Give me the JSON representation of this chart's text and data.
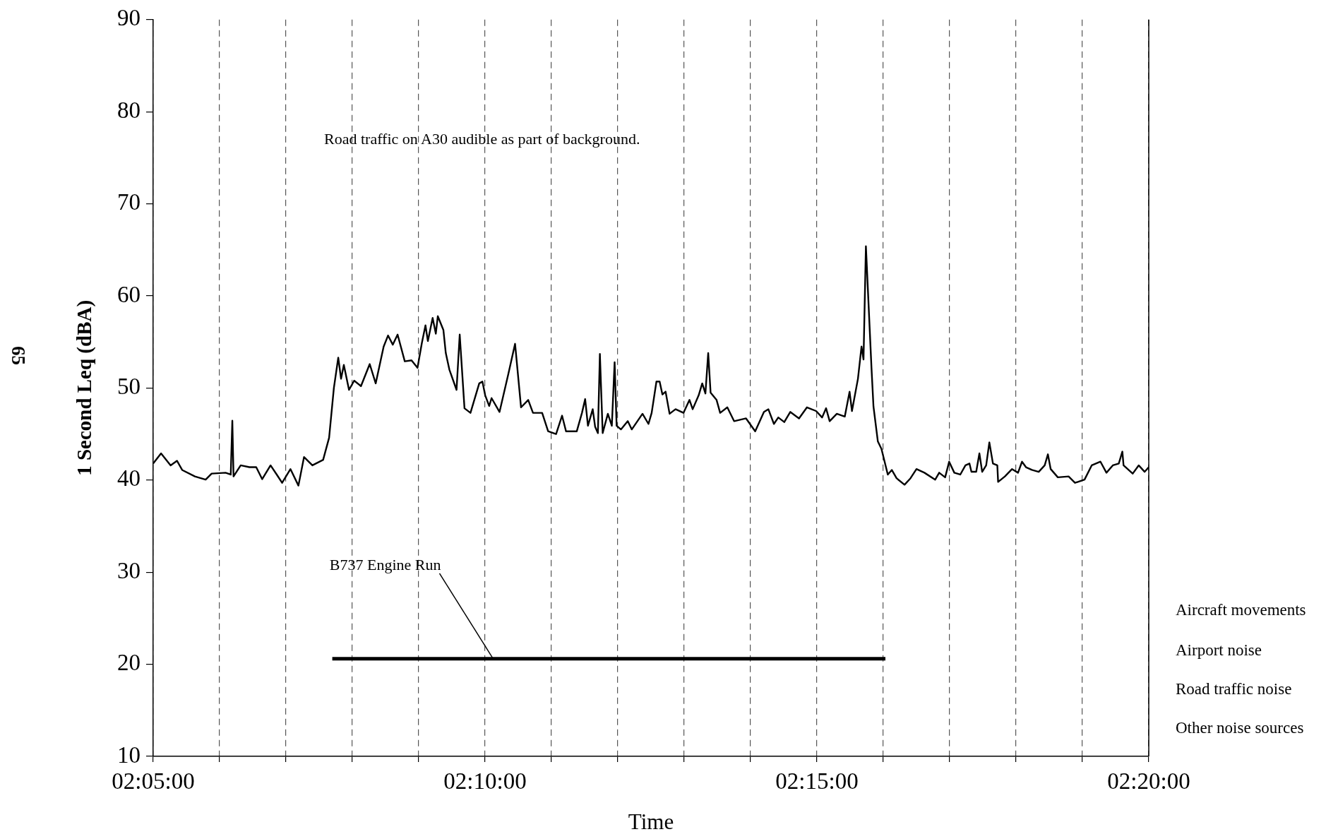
{
  "chart_data": {
    "type": "line",
    "xlabel": "Time",
    "ylabel": "1 Second Leq (dBA)",
    "xlim": [
      2.083333,
      2.333333
    ],
    "ylim": [
      10,
      90
    ],
    "xticks": [
      {
        "value": 2.083333,
        "label": "02:05:00"
      },
      {
        "value": 2.1,
        "label": null
      },
      {
        "value": 2.116667,
        "label": null
      },
      {
        "value": 2.133333,
        "label": null
      },
      {
        "value": 2.15,
        "label": null
      },
      {
        "value": 2.166667,
        "label": "02:10:00"
      },
      {
        "value": 2.183333,
        "label": null
      },
      {
        "value": 2.2,
        "label": null
      },
      {
        "value": 2.216667,
        "label": null
      },
      {
        "value": 2.233333,
        "label": null
      },
      {
        "value": 2.25,
        "label": "02:15:00"
      },
      {
        "value": 2.266667,
        "label": null
      },
      {
        "value": 2.283333,
        "label": null
      },
      {
        "value": 2.3,
        "label": null
      },
      {
        "value": 2.316667,
        "label": null
      },
      {
        "value": 2.333333,
        "label": "02:20:00"
      }
    ],
    "yticks": [
      10,
      20,
      30,
      40,
      50,
      60,
      70,
      80,
      90
    ],
    "grid": "x",
    "legend": false,
    "series": [
      {
        "color": "#000000",
        "x": [
          2.083333,
          2.0853,
          2.0877,
          2.0893,
          2.0906,
          2.0938,
          2.0965,
          2.098,
          2.1015,
          2.1028,
          2.1032,
          2.1035,
          2.1053,
          2.1075,
          2.1092,
          2.1107,
          2.1128,
          2.1145,
          2.1157,
          2.1178,
          2.1198,
          2.1212,
          2.1233,
          2.126,
          2.1275,
          2.1287,
          2.1298,
          2.1305,
          2.1312,
          2.1325,
          2.1338,
          2.1355,
          2.1377,
          2.1392,
          2.1412,
          2.1423,
          2.1435,
          2.1447,
          2.1465,
          2.1482,
          2.1497,
          2.1508,
          2.1517,
          2.1523,
          2.1535,
          2.1543,
          2.1548,
          2.1562,
          2.1568,
          2.1577,
          2.1595,
          2.1603,
          2.1615,
          2.163,
          2.1652,
          2.166,
          2.1667,
          2.1677,
          2.1683,
          2.1703,
          2.1725,
          2.1742,
          2.1757,
          2.1775,
          2.1787,
          2.181,
          2.1825,
          2.1845,
          2.186,
          2.187,
          2.1897,
          2.191,
          2.1918,
          2.1925,
          2.1937,
          2.1943,
          2.195,
          2.1955,
          2.1962,
          2.1975,
          2.1985,
          2.1992,
          2.1997,
          2.2008,
          2.2025,
          2.2035,
          2.2062,
          2.2077,
          2.2085,
          2.2097,
          2.2105,
          2.2112,
          2.212,
          2.213,
          2.2145,
          2.2165,
          2.218,
          2.2188,
          2.2203,
          2.2212,
          2.222,
          2.2227,
          2.2233,
          2.2248,
          2.2257,
          2.2275,
          2.2292,
          2.2322,
          2.2345,
          2.2367,
          2.2378,
          2.2392,
          2.2403,
          2.2418,
          2.2433,
          2.2455,
          2.2475,
          2.2498,
          2.2513,
          2.2523,
          2.2532,
          2.255,
          2.257,
          2.2582,
          2.2588,
          2.2603,
          2.2612,
          2.2617,
          2.2623,
          2.2637,
          2.2642,
          2.2653,
          2.2662,
          2.2678,
          2.2688,
          2.27,
          2.272,
          2.2735,
          2.275,
          2.277,
          2.2797,
          2.2807,
          2.2822,
          2.2832,
          2.2845,
          2.286,
          2.2873,
          2.2883,
          2.2888,
          2.29,
          2.2908,
          2.2915,
          2.2925,
          2.2933,
          2.2942,
          2.2953,
          2.2955,
          2.2972,
          2.299,
          2.3005,
          2.3015,
          2.3025,
          2.304,
          2.3057,
          2.3072,
          2.308,
          2.3087,
          2.3105,
          2.3132,
          2.3148,
          2.3172,
          2.319,
          2.3212,
          2.3227,
          2.3243,
          2.3258,
          2.3267,
          2.327,
          2.3293,
          2.3308,
          2.3323,
          2.333333
        ],
        "values": [
          41.8,
          42.9,
          41.6,
          42.1,
          41.1,
          40.4,
          40.05,
          40.7,
          40.8,
          40.6,
          46.45,
          40.4,
          41.6,
          41.4,
          41.4,
          40.1,
          41.6,
          40.5,
          39.7,
          41.2,
          39.4,
          42.5,
          41.6,
          42.2,
          44.6,
          50.0,
          53.3,
          51.0,
          52.5,
          49.8,
          50.8,
          50.2,
          52.6,
          50.5,
          54.5,
          55.7,
          54.7,
          55.8,
          52.9,
          53.0,
          52.2,
          54.9,
          56.8,
          55.1,
          57.6,
          55.9,
          57.8,
          56.3,
          53.8,
          52.0,
          49.8,
          55.8,
          47.8,
          47.3,
          50.5,
          50.7,
          49.2,
          48.05,
          48.9,
          47.4,
          51.5,
          54.8,
          47.9,
          48.7,
          47.3,
          47.3,
          45.3,
          45.0,
          47.0,
          45.3,
          45.3,
          47.3,
          48.8,
          45.9,
          47.7,
          45.8,
          45.1,
          53.7,
          45.1,
          47.2,
          45.9,
          52.8,
          45.9,
          45.5,
          46.4,
          45.5,
          47.2,
          46.1,
          47.3,
          50.7,
          50.7,
          49.3,
          49.6,
          47.2,
          47.7,
          47.3,
          48.7,
          47.7,
          49.2,
          50.5,
          49.4,
          53.8,
          49.5,
          48.7,
          47.3,
          47.9,
          46.4,
          46.7,
          45.3,
          47.4,
          47.7,
          46.1,
          46.8,
          46.3,
          47.4,
          46.7,
          47.9,
          47.5,
          46.8,
          47.8,
          46.4,
          47.2,
          46.9,
          49.6,
          47.5,
          51.0,
          54.5,
          53.1,
          65.4,
          52.2,
          48.0,
          44.2,
          43.4,
          40.6,
          41.1,
          40.2,
          39.5,
          40.2,
          41.2,
          40.8,
          40.05,
          40.8,
          40.3,
          42.0,
          40.8,
          40.6,
          41.6,
          41.8,
          40.9,
          40.9,
          42.9,
          40.9,
          41.6,
          44.1,
          41.8,
          41.6,
          39.8,
          40.4,
          41.2,
          40.8,
          42.0,
          41.4,
          41.1,
          40.9,
          41.6,
          42.8,
          41.2,
          40.3,
          40.4,
          39.7,
          40.05,
          41.6,
          42.0,
          40.8,
          41.6,
          41.8,
          43.1,
          41.6,
          40.7,
          41.6,
          40.9,
          41.4
        ]
      },
      {
        "color": "#000000",
        "x": [
          2.1283,
          2.2672
        ],
        "values": [
          20.6,
          20.6
        ]
      }
    ],
    "annotations": [
      "Road traffic on A30 audible as part of background.",
      "Aircraft movements",
      "Airport noise",
      "Road traffic noise",
      "Other noise sources",
      "65",
      {
        "text": "B737 Engine Run",
        "x": 2.1687,
        "y": 20.6
      }
    ]
  }
}
